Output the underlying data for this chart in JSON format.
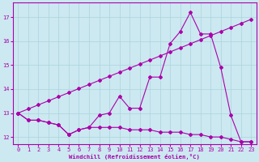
{
  "background_color": "#cce8f0",
  "grid_color": "#aad4dc",
  "line_color": "#aa00aa",
  "xlabel": "Windchill (Refroidissement éolien,°C)",
  "xlim": [
    -0.5,
    23.5
  ],
  "ylim": [
    11.7,
    17.6
  ],
  "yticks": [
    12,
    13,
    14,
    15,
    16,
    17
  ],
  "xticks": [
    0,
    1,
    2,
    3,
    4,
    5,
    6,
    7,
    8,
    9,
    10,
    11,
    12,
    13,
    14,
    15,
    16,
    17,
    18,
    19,
    20,
    21,
    22,
    23
  ],
  "series1_x": [
    0,
    1,
    2,
    3,
    4,
    5,
    6,
    7,
    8,
    9,
    10,
    11,
    12,
    13,
    14,
    15,
    16,
    17,
    18,
    19,
    20,
    21,
    22,
    23
  ],
  "series1_y": [
    13.0,
    12.7,
    12.7,
    12.6,
    12.5,
    12.1,
    12.3,
    12.4,
    12.9,
    13.0,
    13.7,
    13.2,
    13.2,
    14.5,
    14.5,
    15.9,
    16.4,
    17.2,
    16.3,
    16.3,
    14.9,
    12.9,
    11.8,
    11.8
  ],
  "series2_x": [
    0,
    1,
    2,
    3,
    4,
    5,
    6,
    7,
    8,
    9,
    10,
    11,
    12,
    13,
    14,
    15,
    16,
    17,
    18,
    19,
    20,
    21,
    22,
    23
  ],
  "series2_y": [
    13.0,
    12.7,
    12.7,
    12.6,
    12.5,
    12.1,
    12.3,
    12.4,
    12.4,
    12.4,
    12.4,
    12.3,
    12.3,
    12.3,
    12.2,
    12.2,
    12.2,
    12.1,
    12.1,
    12.0,
    12.0,
    11.9,
    11.8,
    11.8
  ],
  "series3_x": [
    0,
    1,
    2,
    3,
    4,
    5,
    6,
    7,
    8,
    9,
    10,
    11,
    12,
    13,
    14,
    15,
    16,
    17,
    18,
    19,
    20,
    21,
    22,
    23
  ],
  "series3_y": [
    13.0,
    13.17,
    13.34,
    13.51,
    13.68,
    13.85,
    14.02,
    14.19,
    14.36,
    14.53,
    14.7,
    14.87,
    15.04,
    15.21,
    15.38,
    15.55,
    15.72,
    15.89,
    16.06,
    16.23,
    16.4,
    16.57,
    16.74,
    16.91
  ]
}
